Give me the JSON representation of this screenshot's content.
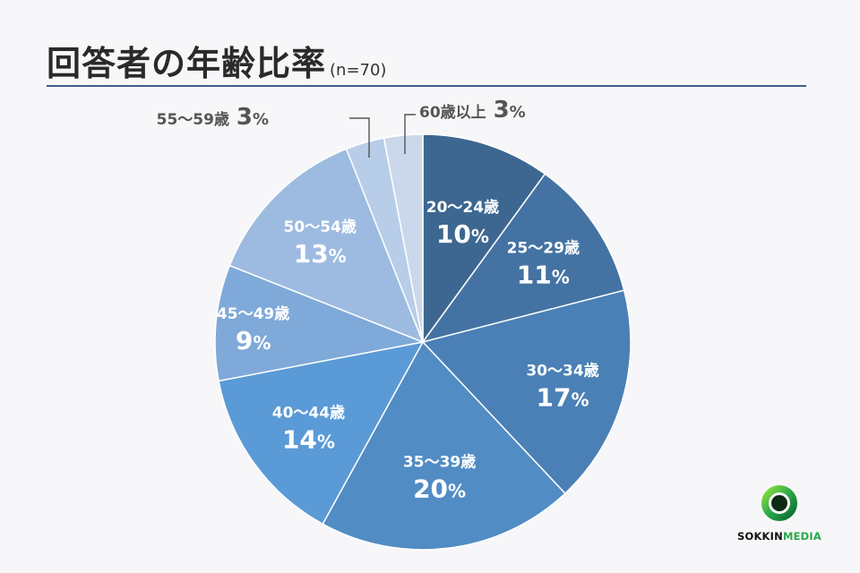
{
  "header": {
    "title": "回答者の年齢比率",
    "subtitle": "(n=70)"
  },
  "chart_data": {
    "type": "pie",
    "title": "回答者の年齢比率",
    "subtitle": "(n=70)",
    "unit": "%",
    "slices": [
      {
        "label": "20～24歳",
        "value": 10,
        "color": "#3d6791",
        "text_color": "#ffffff"
      },
      {
        "label": "25～29歳",
        "value": 11,
        "color": "#4473a3",
        "text_color": "#ffffff"
      },
      {
        "label": "30～34歳",
        "value": 17,
        "color": "#4a80b5",
        "text_color": "#ffffff"
      },
      {
        "label": "35～39歳",
        "value": 20,
        "color": "#528cc4",
        "text_color": "#ffffff"
      },
      {
        "label": "40～44歳",
        "value": 14,
        "color": "#5a9ad6",
        "text_color": "#ffffff"
      },
      {
        "label": "45～49歳",
        "value": 9,
        "color": "#7fa9d9",
        "text_color": "#ffffff"
      },
      {
        "label": "50～54歳",
        "value": 13,
        "color": "#9dbbe0",
        "text_color": "#ffffff"
      },
      {
        "label": "55～59歳",
        "value": 3,
        "color": "#b8cde8",
        "text_color": "#555555"
      },
      {
        "label": "60歳以上",
        "value": 3,
        "color": "#cbd8eb",
        "text_color": "#555555"
      }
    ]
  },
  "logo": {
    "part1": "SOKKIN",
    "part2": "MEDIA",
    "color_primary": "#111111",
    "color_accent": "#2aa84a"
  }
}
